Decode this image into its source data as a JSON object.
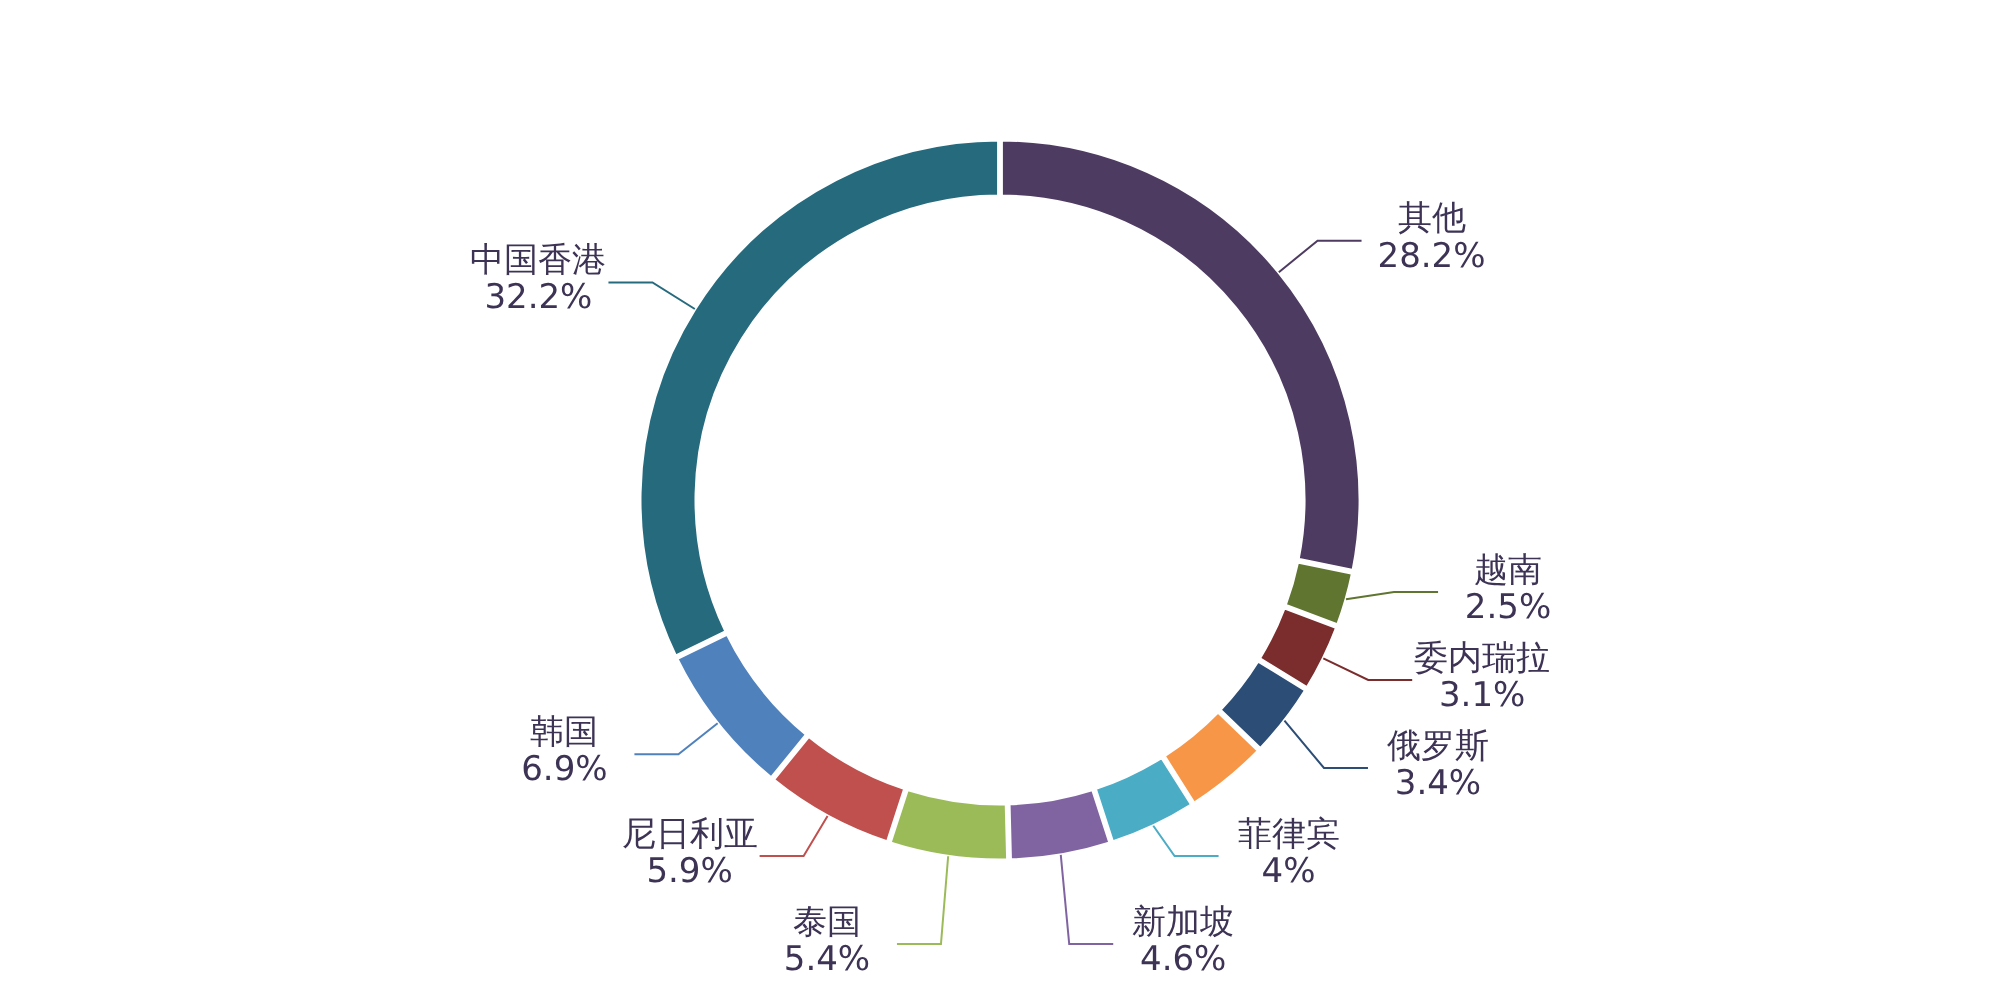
{
  "chart_data": {
    "type": "donut",
    "categories": [
      "其他",
      "越南",
      "委内瑞拉",
      "俄罗斯",
      null,
      "菲律宾",
      "新加坡",
      "泰国",
      "尼日利亚",
      "韩国",
      "中国香港"
    ],
    "values": [
      28.2,
      2.5,
      3.1,
      3.4,
      3.8,
      4,
      4.6,
      5.4,
      5.9,
      6.9,
      32.2
    ],
    "colors": [
      "#4e3b62",
      "#5f7530",
      "#7b2c2c",
      "#2c4d75",
      "#f79646",
      "#4bacc6",
      "#8064a2",
      "#9bbb59",
      "#c0504d",
      "#4f81bd",
      "#266a7e"
    ],
    "value_labels": [
      "28.2%",
      "2.5%",
      "3.1%",
      "3.4%",
      null,
      "4%",
      "4.6%",
      "5.4%",
      "5.9%",
      "6.9%",
      "32.2%"
    ]
  }
}
